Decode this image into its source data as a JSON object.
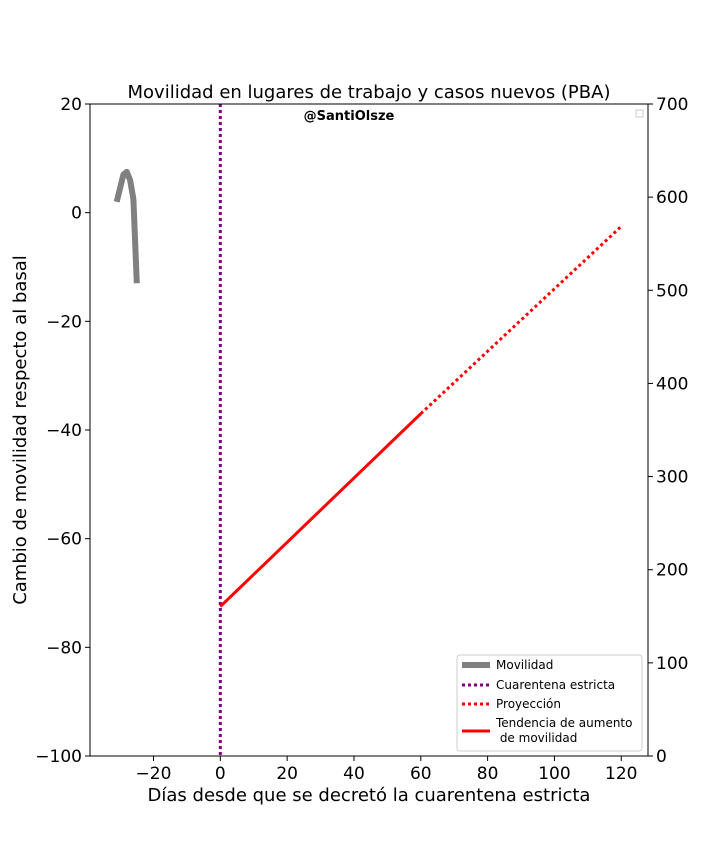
{
  "chart_data": {
    "type": "line",
    "title": "Movilidad en lugares de trabajo y casos nuevos (PBA)",
    "watermark": "@SantiOlsze",
    "xlabel": "Días desde que se decretó la cuarentena estricta",
    "ylabel": "Cambio de movilidad respecto al basal",
    "xlim": [
      -39,
      128
    ],
    "ylim": [
      -100,
      20
    ],
    "y2lim": [
      0,
      700
    ],
    "xticks": [
      -20,
      0,
      20,
      40,
      60,
      80,
      100,
      120
    ],
    "xtick_labels": [
      "−20",
      "0",
      "20",
      "40",
      "60",
      "80",
      "100",
      "120"
    ],
    "yticks": [
      -100,
      -80,
      -60,
      -40,
      -20,
      0,
      20
    ],
    "ytick_labels": [
      "−100",
      "−80",
      "−60",
      "−40",
      "−20",
      "0",
      "20"
    ],
    "y2ticks": [
      0,
      100,
      200,
      300,
      400,
      500,
      600,
      700
    ],
    "y2tick_labels": [
      "0",
      "100",
      "200",
      "300",
      "400",
      "500",
      "600",
      "700"
    ],
    "series": [
      {
        "name": "Movilidad",
        "color": "#808080",
        "style": "solid",
        "axis": "left",
        "x": [
          -31,
          -29,
          -28,
          -27,
          -26,
          -25
        ],
        "y": [
          2,
          7,
          7.5,
          6,
          2.5,
          -13
        ]
      },
      {
        "name": "Cuarentena estricta",
        "color": "#800080",
        "style": "dotted",
        "axis": "vline",
        "x": [
          0
        ]
      },
      {
        "name": "Proyección",
        "color": "#ff0000",
        "style": "dotted",
        "axis": "left",
        "x": [
          60,
          120
        ],
        "y": [
          -37,
          -2.5
        ]
      },
      {
        "name": "Tendencia de aumento\n de movilidad",
        "color": "#ff0000",
        "style": "solid",
        "axis": "left",
        "x": [
          0,
          60
        ],
        "y": [
          -72.5,
          -37
        ]
      }
    ],
    "legend": {
      "position": "lower-right",
      "entries": [
        "Movilidad",
        "Cuarentena estricta",
        "Proyección",
        "Tendencia de aumento",
        " de movilidad"
      ]
    },
    "grid": false
  }
}
